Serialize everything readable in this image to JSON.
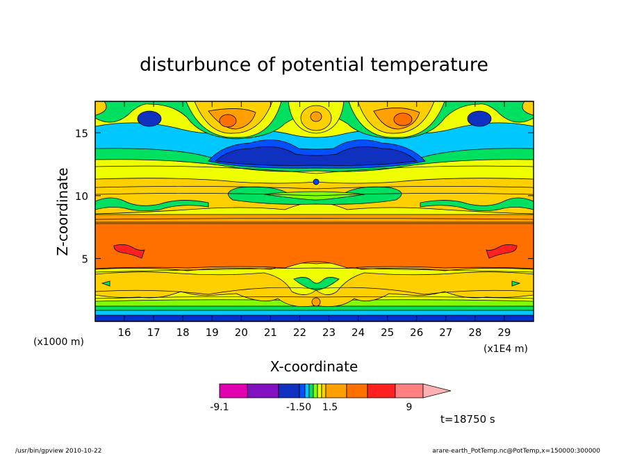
{
  "chart_data": {
    "type": "heatmap",
    "title": "disturbunce of potential temperature",
    "xlabel": "X-coordinate",
    "ylabel": "Z-coordinate",
    "x_unit_left": "(x1000 m)",
    "x_unit_right": "(x1E4 m)",
    "x_ticks": [
      "16",
      "17",
      "18",
      "19",
      "20",
      "21",
      "22",
      "23",
      "24",
      "25",
      "26",
      "27",
      "28",
      "29"
    ],
    "y_ticks": [
      "5",
      "10",
      "15"
    ],
    "xlim": [
      15,
      30
    ],
    "ylim": [
      0,
      17.5
    ],
    "colorbar": {
      "labels": [
        "-9.1",
        "-1.50",
        "1.5",
        "9"
      ],
      "colors": [
        "#e000b0",
        "#8010c0",
        "#1030c0",
        "#0050ff",
        "#00c8ff",
        "#00e060",
        "#80ff00",
        "#f0ff00",
        "#ffd000",
        "#ffa000",
        "#ff7000",
        "#ff2020",
        "#ff8080",
        "#ffb0b0"
      ]
    },
    "layers": [
      {
        "band": "bottom",
        "z": [
          0,
          0.3
        ],
        "level": "#0040ff"
      },
      {
        "band": "bottom",
        "z": [
          0.3,
          0.7
        ],
        "level": "#00c8ff"
      },
      {
        "band": "bottom",
        "z": [
          0.7,
          1.2
        ],
        "level": "#00e060"
      },
      {
        "band": "lower",
        "z": [
          1.2,
          3.5
        ],
        "level": "#f0ff00"
      },
      {
        "band": "lower",
        "z": [
          3.5,
          4.5
        ],
        "level": "#ffd000"
      },
      {
        "band": "middle",
        "z": [
          4.5,
          8.0
        ],
        "level": "#ff7000"
      },
      {
        "band": "middle",
        "z": [
          8.0,
          8.7
        ],
        "level": "#ffa000"
      },
      {
        "band": "upper",
        "z": [
          8.7,
          10.8
        ],
        "level": "#f0ff00"
      },
      {
        "band": "upper",
        "z": [
          10.8,
          12.5
        ],
        "level": "#ffd000"
      },
      {
        "band": "top",
        "z": [
          12.5,
          13.7
        ],
        "level": "#00e060"
      },
      {
        "band": "top",
        "z": [
          13.7,
          15.5
        ],
        "level": "#00c8ff"
      },
      {
        "band": "top",
        "z": [
          15.5,
          17.5
        ],
        "level": "#ffd000"
      }
    ]
  },
  "time_label": "t=18750 s",
  "footer_left": "/usr/bin/gpview   2010-10-22",
  "footer_right": "arare-earth_PotTemp.nc@PotTemp,x=150000:300000"
}
